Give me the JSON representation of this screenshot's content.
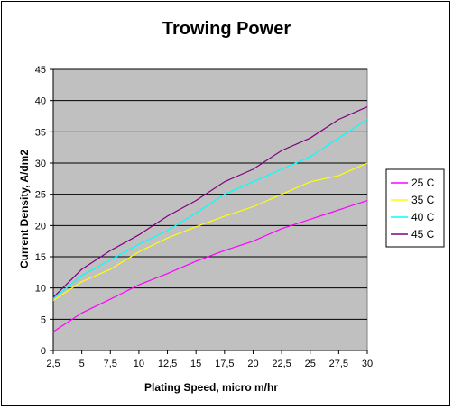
{
  "chart_data": {
    "type": "line",
    "title": "Trowing Power",
    "xlabel": "Plating Speed, micro m/hr",
    "ylabel": "Current Density, A/dm2",
    "x_tick_labels": [
      "2,5",
      "5",
      "7,5",
      "10",
      "12,5",
      "15",
      "17,5",
      "20",
      "22,5",
      "25",
      "27,5",
      "30"
    ],
    "x": [
      2.5,
      5,
      7.5,
      10,
      12.5,
      15,
      17.5,
      20,
      22.5,
      25,
      27.5,
      30
    ],
    "y_ticks": [
      0,
      5,
      10,
      15,
      20,
      25,
      30,
      35,
      40,
      45
    ],
    "xlim": [
      2.5,
      30
    ],
    "ylim": [
      0,
      45
    ],
    "grid": true,
    "plot_background": "#c0c0c0",
    "legend_position": "right",
    "series": [
      {
        "name": "25 C",
        "color": "#ff00ff",
        "values": [
          3.0,
          6.0,
          8.2,
          10.5,
          12.3,
          14.3,
          16.0,
          17.5,
          19.5,
          21.0,
          22.5,
          24.0
        ]
      },
      {
        "name": "35 C",
        "color": "#ffff00",
        "values": [
          8.0,
          11.0,
          13.0,
          15.8,
          18.0,
          19.8,
          21.5,
          23.0,
          25.0,
          27.0,
          28.0,
          30.0
        ]
      },
      {
        "name": "40 C",
        "color": "#00ffff",
        "values": [
          8.3,
          12.0,
          14.5,
          17.0,
          19.2,
          22.0,
          25.0,
          27.0,
          29.0,
          31.0,
          34.0,
          37.0
        ]
      },
      {
        "name": "45 C",
        "color": "#800080",
        "values": [
          8.5,
          13.0,
          16.0,
          18.5,
          21.5,
          24.0,
          27.0,
          29.0,
          32.0,
          34.0,
          37.0,
          39.0
        ]
      }
    ]
  }
}
